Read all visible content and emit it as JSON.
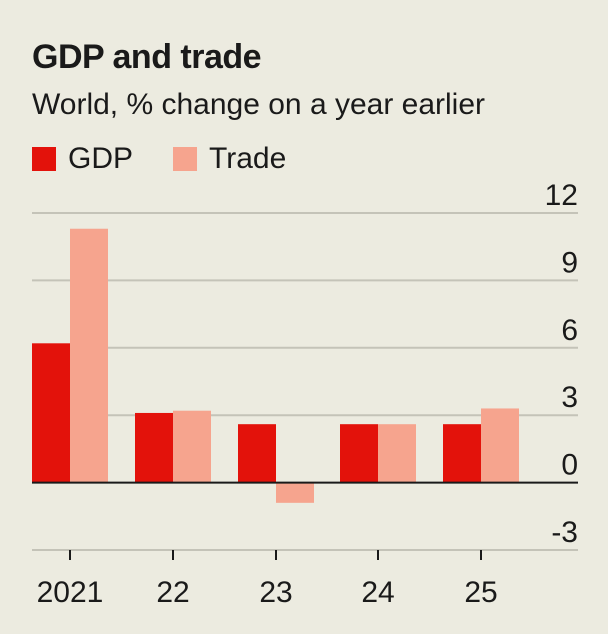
{
  "chart_data": {
    "type": "bar",
    "title": "GDP and trade",
    "subtitle": "World, % change on a year earlier",
    "categories": [
      "2021",
      "22",
      "23",
      "24",
      "25"
    ],
    "series": [
      {
        "name": "GDP",
        "color": "#e3120b",
        "values": [
          6.2,
          3.1,
          2.6,
          2.6,
          2.6
        ]
      },
      {
        "name": "Trade",
        "color": "#f6a48e",
        "values": [
          11.3,
          3.2,
          -0.9,
          2.6,
          3.3
        ]
      }
    ],
    "ylim": [
      -3,
      12
    ],
    "yticks": [
      "12",
      "9",
      "6",
      "3",
      "0",
      "-3"
    ],
    "ytick_values": [
      12,
      9,
      6,
      3,
      0,
      -3
    ],
    "axis_side": "right",
    "legend_position": "top-left",
    "grid": true,
    "xlabel": "",
    "ylabel": ""
  }
}
